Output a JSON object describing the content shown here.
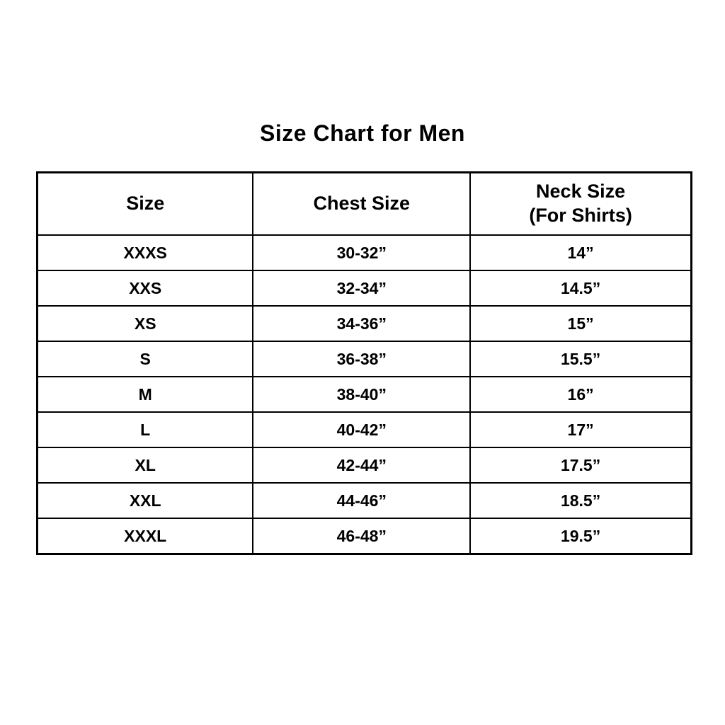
{
  "page": {
    "title": "Size Chart for Men"
  },
  "table": {
    "headers": {
      "size": "Size",
      "chest": "Chest Size",
      "neck_line1": "Neck Size",
      "neck_line2": "(For Shirts)"
    },
    "rows": [
      {
        "size": "XXXS",
        "chest": "30-32”",
        "neck": "14”"
      },
      {
        "size": "XXS",
        "chest": "32-34”",
        "neck": "14.5”"
      },
      {
        "size": "XS",
        "chest": "34-36”",
        "neck": "15”"
      },
      {
        "size": "S",
        "chest": "36-38”",
        "neck": "15.5”"
      },
      {
        "size": "M",
        "chest": "38-40”",
        "neck": "16”"
      },
      {
        "size": "L",
        "chest": "40-42”",
        "neck": "17”"
      },
      {
        "size": "XL",
        "chest": "42-44”",
        "neck": "17.5”"
      },
      {
        "size": "XXL",
        "chest": "44-46”",
        "neck": "18.5”"
      },
      {
        "size": "XXXL",
        "chest": "46-48”",
        "neck": "19.5”"
      }
    ]
  },
  "colors": {
    "text": "#000000",
    "border": "#000000",
    "background": "#ffffff"
  },
  "chart_data": {
    "type": "table",
    "title": "Size Chart for Men",
    "columns": [
      "Size",
      "Chest Size",
      "Neck Size (For Shirts)"
    ],
    "rows": [
      [
        "XXXS",
        "30-32”",
        "14”"
      ],
      [
        "XXS",
        "32-34”",
        "14.5”"
      ],
      [
        "XS",
        "34-36”",
        "15”"
      ],
      [
        "S",
        "36-38”",
        "15.5”"
      ],
      [
        "M",
        "38-40”",
        "16”"
      ],
      [
        "L",
        "40-42”",
        "17”"
      ],
      [
        "XL",
        "42-44”",
        "17.5”"
      ],
      [
        "XXL",
        "44-46”",
        "18.5”"
      ],
      [
        "XXXL",
        "46-48”",
        "19.5”"
      ]
    ]
  }
}
